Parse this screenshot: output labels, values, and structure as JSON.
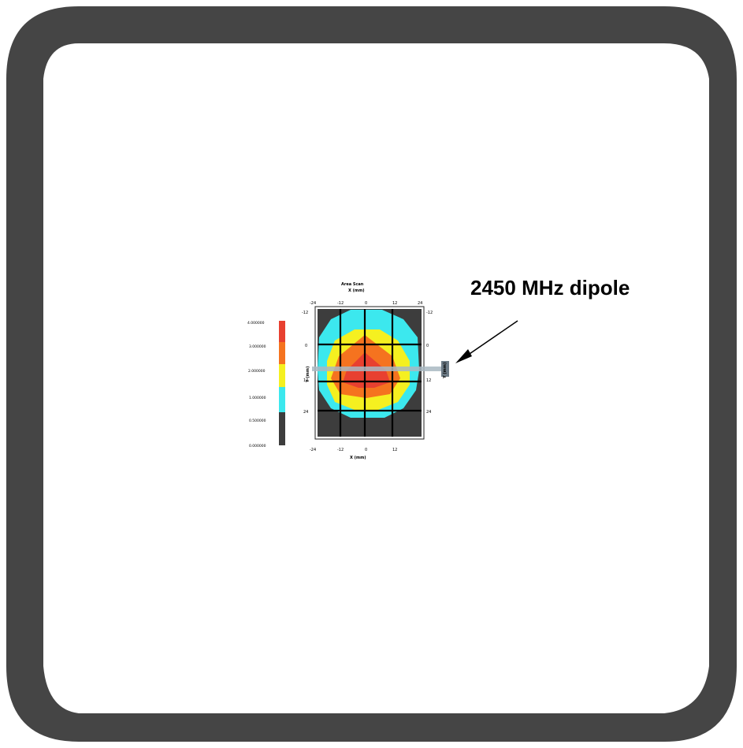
{
  "annotation": {
    "label": "2450 MHz dipole"
  },
  "sar_map": {
    "top_title": "Area Scan",
    "top_axis_label": "X (mm)",
    "bottom_axis_label": "X (mm)",
    "left_axis_label": "Y (mm)",
    "right_axis_label": "Y (mm)",
    "x_ticks": [
      "-24",
      "-12",
      "0",
      "12",
      "24"
    ],
    "y_ticks_left": [
      "-12",
      "0",
      "12",
      "24"
    ],
    "y_ticks_right": [
      "-12",
      "0",
      "12",
      "24"
    ],
    "colors": {
      "background": "#3d3d3d",
      "level_1": "#3ce8ee",
      "level_2": "#f5f020",
      "level_3": "#f5731f",
      "level_4": "#e84030",
      "grid": "#000000",
      "frame": "#4a4a4a"
    },
    "legend": {
      "labels": [
        "4.000000",
        "3.000000",
        "2.000000",
        "1.000000",
        "0.500000",
        "0.000000"
      ],
      "colors": [
        "#e84030",
        "#f5731f",
        "#f5f020",
        "#3ce8ee",
        "#3d3d3d"
      ]
    }
  }
}
